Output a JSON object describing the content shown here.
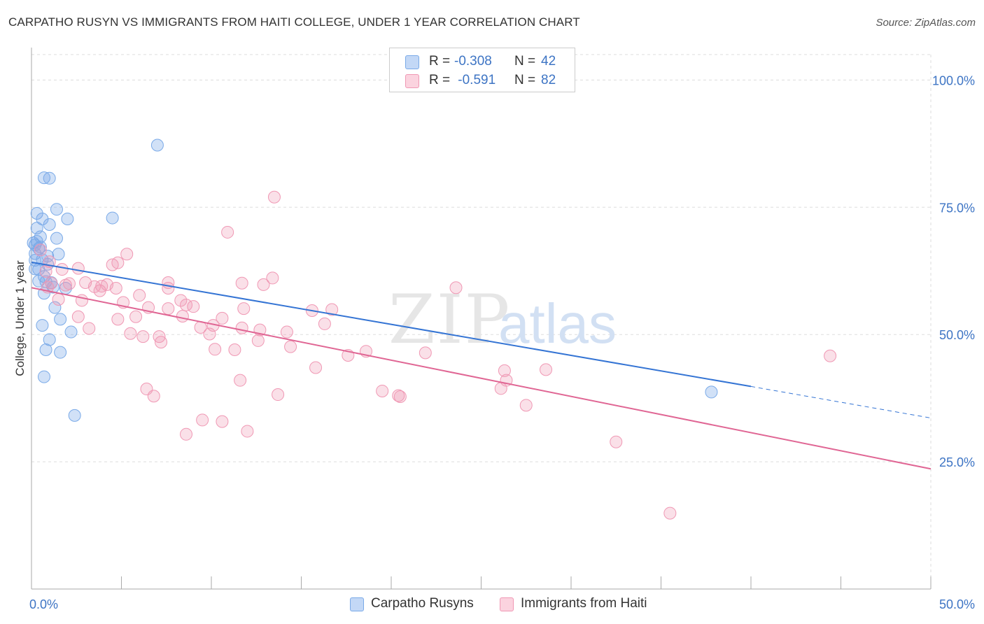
{
  "title": "CARPATHO RUSYN VS IMMIGRANTS FROM HAITI COLLEGE, UNDER 1 YEAR CORRELATION CHART",
  "source": "Source: ZipAtlas.com",
  "watermark": {
    "zip": "ZIP",
    "atlas": "atlas"
  },
  "legend": {
    "series1": {
      "r_label": "R =",
      "r_value": "-0.308",
      "n_label": "N =",
      "n_value": "42"
    },
    "series2": {
      "r_label": "R =",
      "r_value": " -0.591",
      "n_label": "N =",
      "n_value": "82"
    }
  },
  "chart_data": {
    "type": "scatter",
    "title": "CARPATHO RUSYN VS IMMIGRANTS FROM HAITI COLLEGE, UNDER 1 YEAR CORRELATION CHART",
    "xlabel": "",
    "ylabel": "College, Under 1 year",
    "xlim": [
      0,
      50
    ],
    "ylim": [
      0,
      105
    ],
    "x_tick_labels": [
      "0.0%",
      "50.0%"
    ],
    "y_tick_values": [
      25,
      50,
      75,
      100
    ],
    "y_tick_labels": [
      "25.0%",
      "50.0%",
      "75.0%",
      "100.0%"
    ],
    "grid": true,
    "legend_position": "top-center",
    "colors": {
      "series1": "#7aaae8",
      "series2": "#f098b4",
      "line1": "#3474d4",
      "line2": "#e06694",
      "tick_text": "#3d74c4"
    },
    "series": [
      {
        "name": "Carpatho Rusyns",
        "trend": {
          "x0": 0,
          "y0": 64.2,
          "x1": 40.0,
          "y1": 39.8,
          "dash_to_x": 50,
          "dash_to_y": 33.6
        },
        "points": [
          [
            0.3,
            73.8
          ],
          [
            0.6,
            72.7
          ],
          [
            1.0,
            71.6
          ],
          [
            1.4,
            74.6
          ],
          [
            1.0,
            80.7
          ],
          [
            0.7,
            80.8
          ],
          [
            0.3,
            70.9
          ],
          [
            0.5,
            69.2
          ],
          [
            1.4,
            68.9
          ],
          [
            0.2,
            67.6
          ],
          [
            0.4,
            66.9
          ],
          [
            0.2,
            65.9
          ],
          [
            0.6,
            64.7
          ],
          [
            2.0,
            72.7
          ],
          [
            0.1,
            68.0
          ],
          [
            0.3,
            68.3
          ],
          [
            0.5,
            67.2
          ],
          [
            0.2,
            64.6
          ],
          [
            1.5,
            65.8
          ],
          [
            0.9,
            65.4
          ],
          [
            0.4,
            62.8
          ],
          [
            0.7,
            61.4
          ],
          [
            0.8,
            60.4
          ],
          [
            1.1,
            60.2
          ],
          [
            0.7,
            58.1
          ],
          [
            1.9,
            59.1
          ],
          [
            1.3,
            55.3
          ],
          [
            1.6,
            53.0
          ],
          [
            0.6,
            51.8
          ],
          [
            2.2,
            50.5
          ],
          [
            1.0,
            49.0
          ],
          [
            0.8,
            47.0
          ],
          [
            1.6,
            46.5
          ],
          [
            0.7,
            41.7
          ],
          [
            2.4,
            34.1
          ],
          [
            4.5,
            72.9
          ],
          [
            7.0,
            87.2
          ],
          [
            0.4,
            60.5
          ],
          [
            0.2,
            62.9
          ],
          [
            1.2,
            59.3
          ],
          [
            0.9,
            63.8
          ],
          [
            37.8,
            38.7
          ]
        ]
      },
      {
        "name": "Immigrants from Haiti",
        "trend": {
          "x0": 0,
          "y0": 59.2,
          "x1": 50,
          "y1": 23.6
        },
        "points": [
          [
            0.5,
            66.6
          ],
          [
            1.0,
            64.3
          ],
          [
            0.8,
            62.4
          ],
          [
            1.7,
            62.8
          ],
          [
            2.6,
            63.0
          ],
          [
            2.1,
            60.0
          ],
          [
            3.0,
            60.2
          ],
          [
            4.5,
            63.7
          ],
          [
            4.8,
            64.1
          ],
          [
            5.3,
            65.8
          ],
          [
            1.1,
            60.1
          ],
          [
            1.9,
            59.7
          ],
          [
            3.5,
            59.4
          ],
          [
            4.7,
            59.1
          ],
          [
            3.8,
            58.6
          ],
          [
            3.9,
            59.5
          ],
          [
            4.2,
            59.8
          ],
          [
            7.6,
            59.1
          ],
          [
            7.6,
            60.2
          ],
          [
            1.5,
            56.9
          ],
          [
            2.8,
            56.7
          ],
          [
            5.1,
            56.3
          ],
          [
            8.3,
            56.7
          ],
          [
            6.0,
            57.7
          ],
          [
            9.0,
            55.5
          ],
          [
            8.6,
            55.8
          ],
          [
            6.5,
            55.3
          ],
          [
            7.6,
            55.1
          ],
          [
            8.4,
            53.6
          ],
          [
            5.8,
            53.5
          ],
          [
            4.8,
            53.0
          ],
          [
            10.6,
            53.2
          ],
          [
            10.1,
            51.8
          ],
          [
            9.4,
            51.4
          ],
          [
            11.7,
            51.3
          ],
          [
            12.7,
            50.9
          ],
          [
            15.6,
            54.7
          ],
          [
            16.7,
            54.9
          ],
          [
            16.3,
            52.1
          ],
          [
            9.9,
            50.1
          ],
          [
            5.5,
            50.2
          ],
          [
            6.2,
            49.6
          ],
          [
            7.1,
            49.6
          ],
          [
            12.6,
            48.8
          ],
          [
            14.2,
            50.5
          ],
          [
            10.2,
            47.1
          ],
          [
            11.3,
            47.0
          ],
          [
            14.4,
            47.6
          ],
          [
            7.2,
            48.5
          ],
          [
            17.6,
            45.9
          ],
          [
            18.6,
            46.7
          ],
          [
            21.9,
            46.4
          ],
          [
            15.8,
            43.5
          ],
          [
            23.6,
            59.2
          ],
          [
            11.8,
            55.1
          ],
          [
            13.4,
            61.1
          ],
          [
            11.7,
            60.1
          ],
          [
            12.9,
            59.8
          ],
          [
            13.5,
            77.0
          ],
          [
            10.9,
            70.1
          ],
          [
            13.7,
            38.2
          ],
          [
            11.6,
            41.0
          ],
          [
            6.4,
            39.3
          ],
          [
            6.8,
            37.9
          ],
          [
            9.5,
            33.2
          ],
          [
            10.6,
            32.9
          ],
          [
            8.6,
            30.4
          ],
          [
            12.0,
            31.0
          ],
          [
            19.5,
            38.9
          ],
          [
            20.4,
            38.0
          ],
          [
            20.5,
            37.8
          ],
          [
            26.3,
            42.9
          ],
          [
            26.4,
            41.0
          ],
          [
            26.1,
            39.4
          ],
          [
            28.6,
            43.1
          ],
          [
            27.5,
            36.1
          ],
          [
            32.5,
            28.9
          ],
          [
            35.5,
            14.9
          ],
          [
            44.4,
            45.8
          ],
          [
            3.2,
            51.2
          ],
          [
            2.6,
            53.5
          ],
          [
            0.9,
            59.3
          ]
        ]
      }
    ]
  }
}
